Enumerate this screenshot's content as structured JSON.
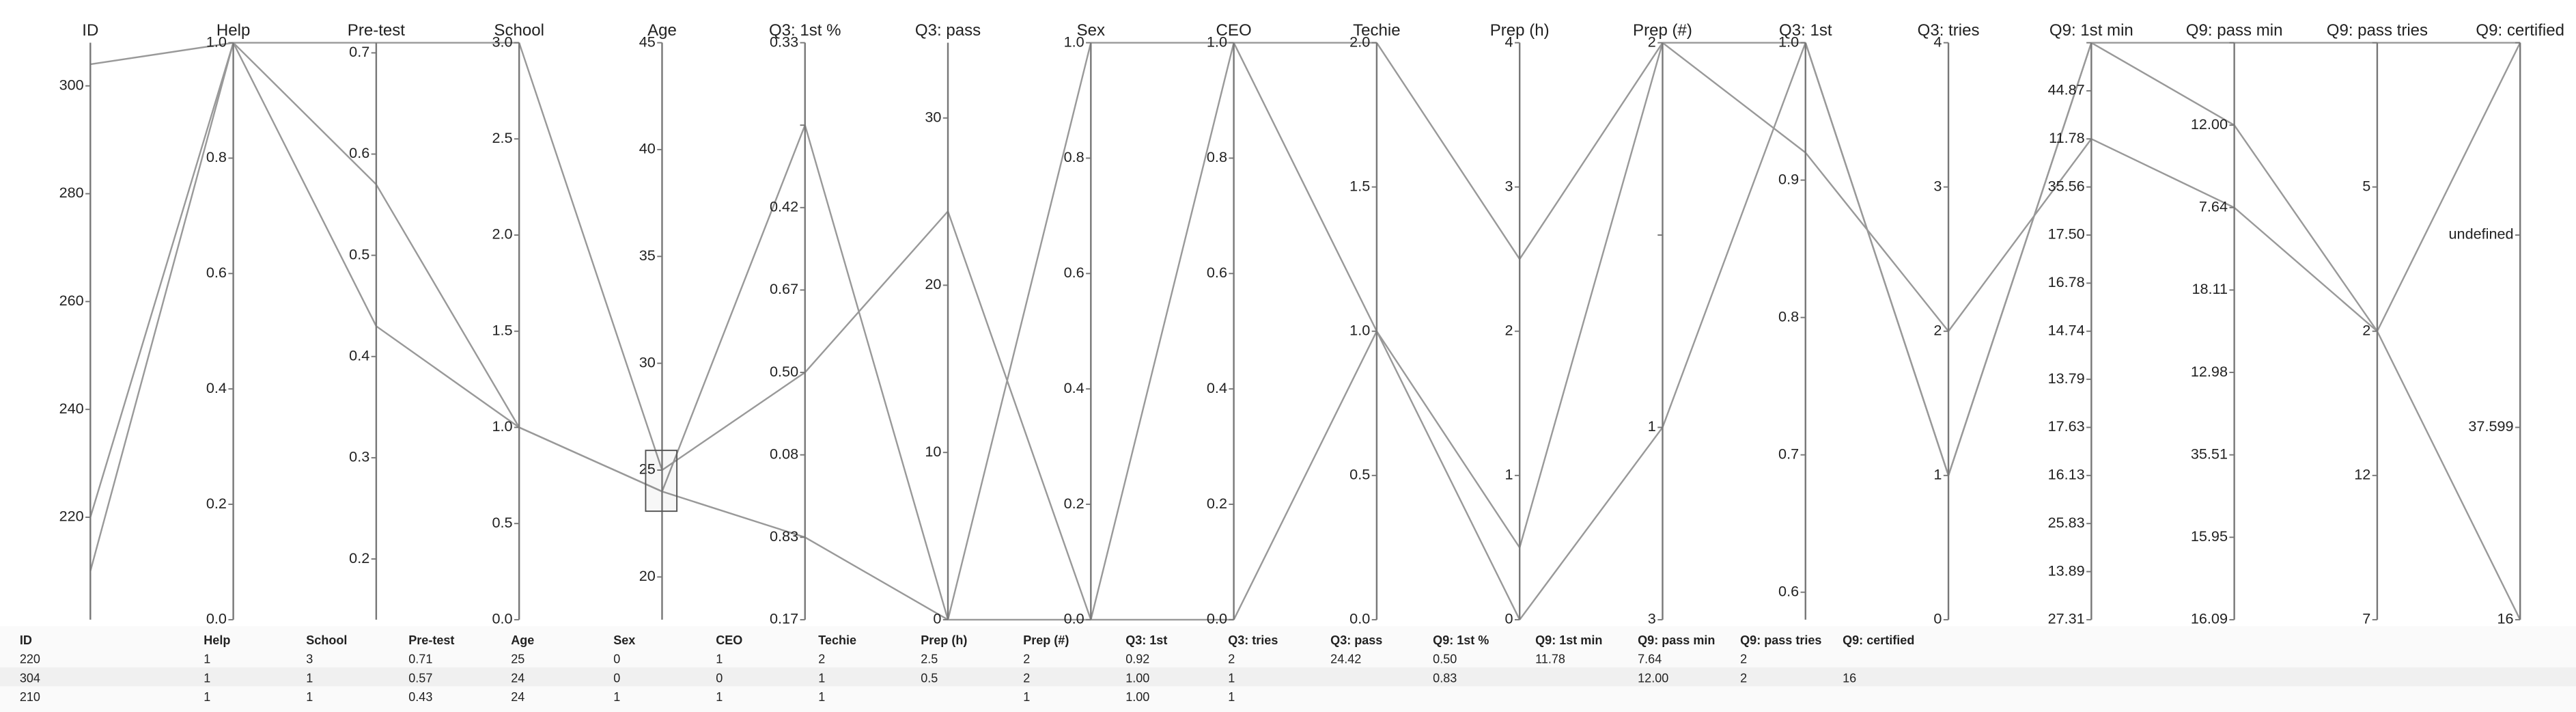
{
  "axes": [
    {
      "label": "ID",
      "ylim": [
        201,
        308
      ],
      "ticks": [
        220,
        240,
        260,
        280,
        300
      ]
    },
    {
      "label": "Help",
      "ylim": [
        0,
        1
      ],
      "ticks": [
        {
          "value": 0,
          "label": "0.0"
        },
        0.2,
        0.4,
        0.6,
        0.8,
        {
          "value": 1,
          "label": "1.0"
        }
      ]
    },
    {
      "label": "Pre-test",
      "ylim": [
        0.14,
        0.71
      ],
      "ticks": [
        0.2,
        0.3,
        0.4,
        0.5,
        0.6,
        0.7
      ]
    },
    {
      "label": "School",
      "ylim": [
        0,
        3
      ],
      "ticks": [
        {
          "value": 0,
          "label": "0.0"
        },
        0.5,
        {
          "value": 1,
          "label": "1.0"
        },
        1.5,
        {
          "value": 2,
          "label": "2.0"
        },
        2.5,
        {
          "value": 3,
          "label": "3.0"
        }
      ]
    },
    {
      "label": "Age",
      "ylim": [
        18,
        45
      ],
      "ticks": [
        20,
        25,
        30,
        35,
        40,
        45
      ]
    },
    {
      "label": "Q3: 1st %",
      "categories": [
        "0.33",
        null,
        "0.42",
        "0.67",
        "0.50",
        "0.08",
        "0.83",
        "0.17"
      ]
    },
    {
      "label": "Q3: pass",
      "ylim": [
        0,
        34.5
      ],
      "ticks": [
        0,
        10,
        20,
        30
      ]
    },
    {
      "label": "Sex",
      "ylim": [
        0,
        1
      ],
      "ticks": [
        {
          "value": 0,
          "label": "0.0"
        },
        0.2,
        0.4,
        0.6,
        0.8,
        {
          "value": 1,
          "label": "1.0"
        }
      ]
    },
    {
      "label": "CEO",
      "ylim": [
        0,
        1
      ],
      "ticks": [
        {
          "value": 0,
          "label": "0.0"
        },
        0.2,
        0.4,
        0.6,
        0.8,
        {
          "value": 1,
          "label": "1.0"
        }
      ]
    },
    {
      "label": "Techie",
      "ylim": [
        0,
        2
      ],
      "ticks": [
        {
          "value": 0,
          "label": "0.0"
        },
        0.5,
        {
          "value": 1,
          "label": "1.0"
        },
        1.5,
        {
          "value": 2,
          "label": "2.0"
        }
      ]
    },
    {
      "label": "Prep (h)",
      "ylim": [
        0,
        4
      ],
      "ticks": [
        0,
        1,
        2,
        3,
        4
      ]
    },
    {
      "label": "Prep (#)",
      "categories": [
        "2",
        null,
        "1",
        "3"
      ]
    },
    {
      "label": "Q3: 1st",
      "ylim": [
        0.58,
        1
      ],
      "ticks": [
        0.6,
        0.7,
        0.8,
        0.9,
        {
          "value": 1,
          "label": "1.0"
        }
      ]
    },
    {
      "label": "Q3: tries",
      "ylim": [
        0,
        4
      ],
      "ticks": [
        0,
        1,
        2,
        3,
        4
      ]
    },
    {
      "label": "Q9: 1st min",
      "categories": [
        null,
        "44.87",
        "11.78",
        "35.56",
        "17.50",
        "16.78",
        "14.74",
        "13.79",
        "17.63",
        "16.13",
        "25.83",
        "13.89",
        "27.31"
      ]
    },
    {
      "label": "Q9: pass min",
      "categories": [
        null,
        "12.00",
        "7.64",
        "18.11",
        "12.98",
        "35.51",
        "15.95",
        "16.09"
      ]
    },
    {
      "label": "Q9: pass tries",
      "categories": [
        null,
        "5",
        "2",
        "12",
        "7"
      ]
    },
    {
      "label": "Q9: certified",
      "categories": [
        null,
        "undefined",
        "37.599",
        "16"
      ]
    }
  ],
  "lines": [
    {
      "values": [
        220,
        1,
        0.71,
        3,
        25,
        "0.50",
        24.42,
        0,
        1,
        2,
        2.5,
        "2",
        0.92,
        2,
        "11.78",
        "7.64",
        "2",
        null
      ]
    },
    {
      "values": [
        304,
        1,
        0.57,
        1,
        24,
        "0.83",
        0,
        0,
        0,
        1,
        0.5,
        "2",
        1,
        1,
        null,
        "12.00",
        "2",
        "16"
      ]
    },
    {
      "values": [
        210,
        1,
        0.43,
        1,
        24,
        null,
        0,
        1,
        1,
        1,
        0,
        "1",
        1,
        1,
        null,
        null,
        null,
        null
      ]
    }
  ],
  "table": {
    "headers": [
      "ID",
      "Help",
      "School",
      "Pre-test",
      "Age",
      "Sex",
      "CEO",
      "Techie",
      "Prep (h)",
      "Prep (#)",
      "Q3: 1st",
      "Q3: tries",
      "Q3: pass",
      "Q9: 1st %",
      "Q9: 1st min",
      "Q9: pass min",
      "Q9: pass tries",
      "Q9: certified"
    ],
    "rows": [
      [
        "220",
        "1",
        "3",
        "0.71",
        "25",
        "0",
        "1",
        "2",
        "2.5",
        "2",
        "0.92",
        "2",
        "24.42",
        "0.50",
        "11.78",
        "7.64",
        "2",
        null
      ],
      [
        "304",
        "1",
        "1",
        "0.57",
        "24",
        "0",
        "0",
        "1",
        "0.5",
        "2",
        "1.00",
        "1",
        null,
        "0.83",
        null,
        "12.00",
        "2",
        "16"
      ],
      [
        "210",
        "1",
        "1",
        "0.43",
        "24",
        "1",
        "1",
        "1",
        null,
        "1",
        "1.00",
        "1",
        null,
        null,
        null,
        null,
        null,
        null
      ]
    ]
  }
}
